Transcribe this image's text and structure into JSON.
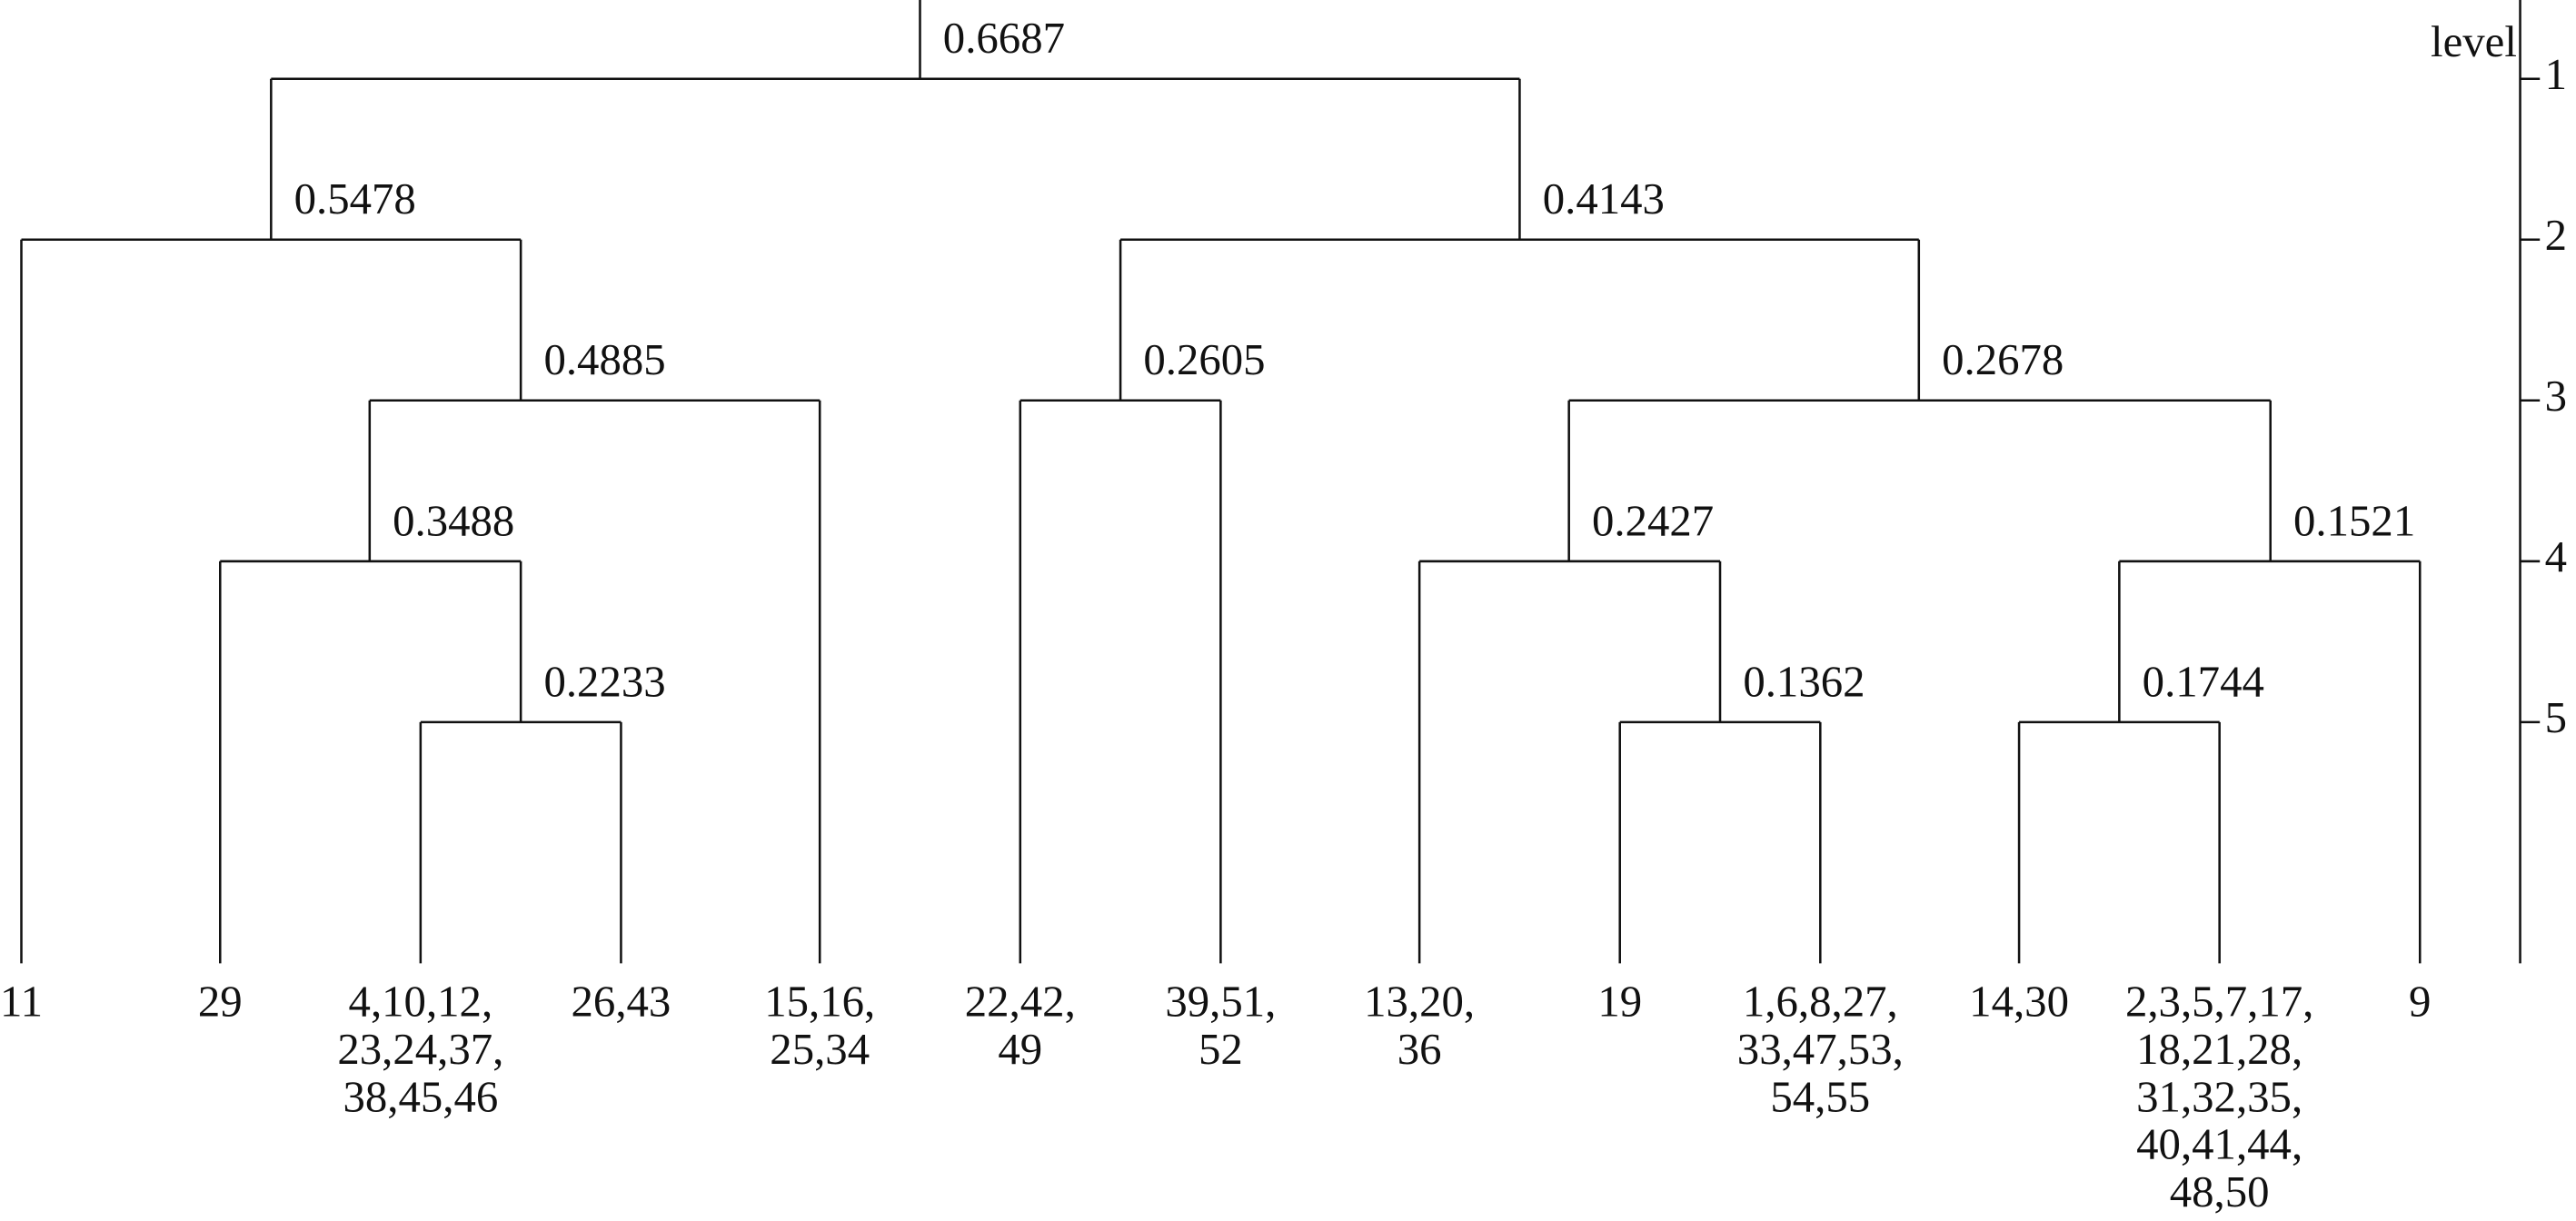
{
  "axis": {
    "title": "level",
    "ticks": [
      "1",
      "2",
      "3",
      "4",
      "5"
    ]
  },
  "nodes": [
    {
      "label": "0.6687"
    },
    {
      "label": "0.5478"
    },
    {
      "label": "0.4885"
    },
    {
      "label": "0.3488"
    },
    {
      "label": "0.2233"
    },
    {
      "label": "0.4143"
    },
    {
      "label": "0.2605"
    },
    {
      "label": "0.2678"
    },
    {
      "label": "0.2427"
    },
    {
      "label": "0.1362"
    },
    {
      "label": "0.1521"
    },
    {
      "label": "0.1744"
    }
  ],
  "leaves": [
    {
      "lines": [
        "11"
      ]
    },
    {
      "lines": [
        "29"
      ]
    },
    {
      "lines": [
        "4,10,12,",
        "23,24,37,",
        "38,45,46"
      ]
    },
    {
      "lines": [
        "26,43"
      ]
    },
    {
      "lines": [
        "15,16,",
        "25,34"
      ]
    },
    {
      "lines": [
        "22,42,",
        "49"
      ]
    },
    {
      "lines": [
        "39,51,",
        "52"
      ]
    },
    {
      "lines": [
        "13,20,",
        "36"
      ]
    },
    {
      "lines": [
        "19"
      ]
    },
    {
      "lines": [
        "1,6,8,27,",
        "33,47,53,",
        "54,55"
      ]
    },
    {
      "lines": [
        "14,30"
      ]
    },
    {
      "lines": [
        "2,3,5,7,17,",
        "18,21,28,",
        "31,32,35,",
        "40,41,44,",
        "48,50"
      ]
    },
    {
      "lines": [
        "9"
      ]
    }
  ]
}
